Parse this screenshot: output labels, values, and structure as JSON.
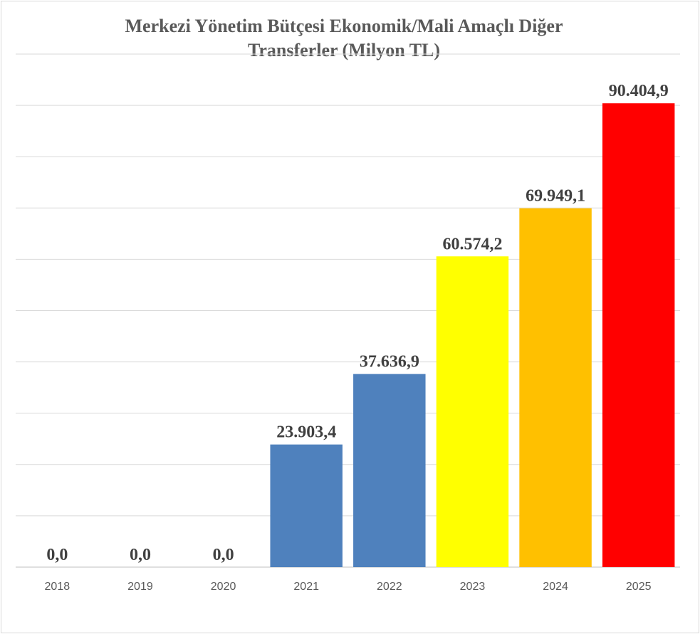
{
  "chart_data": {
    "type": "bar",
    "title_lines": [
      "Merkezi Yönetim Bütçesi Ekonomik/Mali Amaçlı Diğer",
      "Transferler (Milyon TL)"
    ],
    "categories": [
      "2018",
      "2019",
      "2020",
      "2021",
      "2022",
      "2023",
      "2024",
      "2025"
    ],
    "values": [
      0,
      0,
      0,
      23903.4,
      37636.9,
      60574.2,
      69949.1,
      90404.9
    ],
    "data_labels": [
      "0,0",
      "0,0",
      "0,0",
      "23.903,4",
      "37.636,9",
      "60.574,2",
      "69.949,1",
      "90.404,9"
    ],
    "bar_colors": [
      "#4f81bd",
      "#4f81bd",
      "#4f81bd",
      "#4f81bd",
      "#4f81bd",
      "#ffff00",
      "#ffc000",
      "#ff0000"
    ],
    "ylim": [
      0,
      100000
    ],
    "y_gridline_step": 10000,
    "grid": true,
    "legend": "none",
    "xlabel": "",
    "ylabel": ""
  }
}
